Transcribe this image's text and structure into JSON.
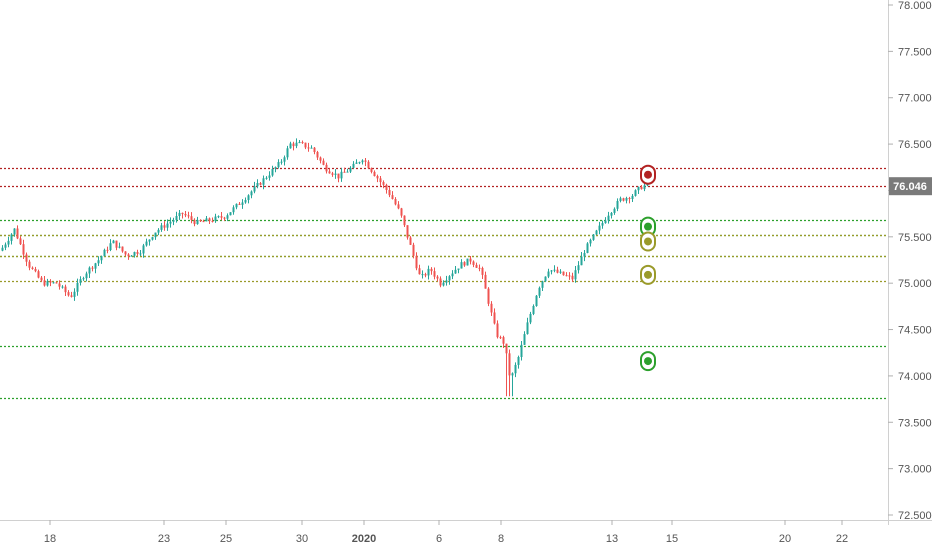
{
  "chart_data": {
    "type": "candlestick",
    "title": "",
    "xlabel": "",
    "ylabel": "",
    "ylim": [
      72.45,
      78.05
    ],
    "y_ticks": [
      "78.000",
      "77.500",
      "77.000",
      "76.500",
      "76.000",
      "75.500",
      "75.000",
      "74.500",
      "74.000",
      "73.500",
      "73.000",
      "72.500"
    ],
    "y_tick_values": [
      78.0,
      77.5,
      77.0,
      76.5,
      76.0,
      75.5,
      75.0,
      74.5,
      74.0,
      73.5,
      73.0,
      72.5
    ],
    "x_tick_labels": [
      "18",
      "23",
      "25",
      "30",
      "2020",
      "6",
      "8",
      "13",
      "15",
      "20",
      "22"
    ],
    "current_price": {
      "label": "76.046",
      "value": 76.046,
      "color": "#7a7a7a"
    },
    "horizontal_levels": [
      {
        "value": 76.24,
        "color": "#b22222",
        "style": "dotted"
      },
      {
        "value": 76.05,
        "color": "#b22222",
        "style": "dotted"
      },
      {
        "value": 75.68,
        "color": "#2ca02c",
        "style": "dotted"
      },
      {
        "value": 75.52,
        "color": "#2ca02c",
        "style": "dotted"
      },
      {
        "value": 75.52,
        "color": "#9a9a2a",
        "style": "dotted"
      },
      {
        "value": 75.29,
        "color": "#2ca02c",
        "style": "dotted"
      },
      {
        "value": 75.29,
        "color": "#9a9a2a",
        "style": "dotted"
      },
      {
        "value": 75.02,
        "color": "#9a9a2a",
        "style": "dotted"
      },
      {
        "value": 74.32,
        "color": "#2ca02c",
        "style": "dotted"
      },
      {
        "value": 73.76,
        "color": "#2ca02c",
        "style": "dotted"
      }
    ],
    "markers": [
      {
        "value": 76.17,
        "color": "#b22222"
      },
      {
        "value": 75.61,
        "color": "#2ca02c"
      },
      {
        "value": 75.45,
        "color": "#9a9a2a"
      },
      {
        "value": 75.09,
        "color": "#9a9a2a"
      },
      {
        "value": 74.16,
        "color": "#2ca02c"
      }
    ],
    "close_path": [
      [
        0,
        75.35
      ],
      [
        14,
        75.58
      ],
      [
        28,
        75.2
      ],
      [
        42,
        75.0
      ],
      [
        56,
        75.0
      ],
      [
        70,
        74.85
      ],
      [
        84,
        75.1
      ],
      [
        98,
        75.25
      ],
      [
        112,
        75.45
      ],
      [
        126,
        75.3
      ],
      [
        140,
        75.35
      ],
      [
        154,
        75.55
      ],
      [
        168,
        75.65
      ],
      [
        182,
        75.75
      ],
      [
        196,
        75.65
      ],
      [
        210,
        75.68
      ],
      [
        224,
        75.72
      ],
      [
        238,
        75.85
      ],
      [
        252,
        76.0
      ],
      [
        266,
        76.15
      ],
      [
        280,
        76.3
      ],
      [
        290,
        76.5
      ],
      [
        300,
        76.5
      ],
      [
        312,
        76.45
      ],
      [
        324,
        76.25
      ],
      [
        338,
        76.15
      ],
      [
        352,
        76.25
      ],
      [
        362,
        76.35
      ],
      [
        376,
        76.15
      ],
      [
        390,
        75.95
      ],
      [
        400,
        75.75
      ],
      [
        410,
        75.4
      ],
      [
        420,
        75.05
      ],
      [
        430,
        75.15
      ],
      [
        440,
        75.0
      ],
      [
        450,
        75.1
      ],
      [
        460,
        75.2
      ],
      [
        470,
        75.25
      ],
      [
        480,
        75.15
      ],
      [
        488,
        74.8
      ],
      [
        496,
        74.45
      ],
      [
        504,
        74.35
      ],
      [
        510,
        73.95
      ],
      [
        518,
        74.2
      ],
      [
        528,
        74.6
      ],
      [
        538,
        74.95
      ],
      [
        548,
        75.15
      ],
      [
        560,
        75.1
      ],
      [
        572,
        75.05
      ],
      [
        584,
        75.35
      ],
      [
        596,
        75.55
      ],
      [
        608,
        75.75
      ],
      [
        620,
        75.9
      ],
      [
        632,
        75.95
      ],
      [
        642,
        76.05
      ]
    ]
  }
}
